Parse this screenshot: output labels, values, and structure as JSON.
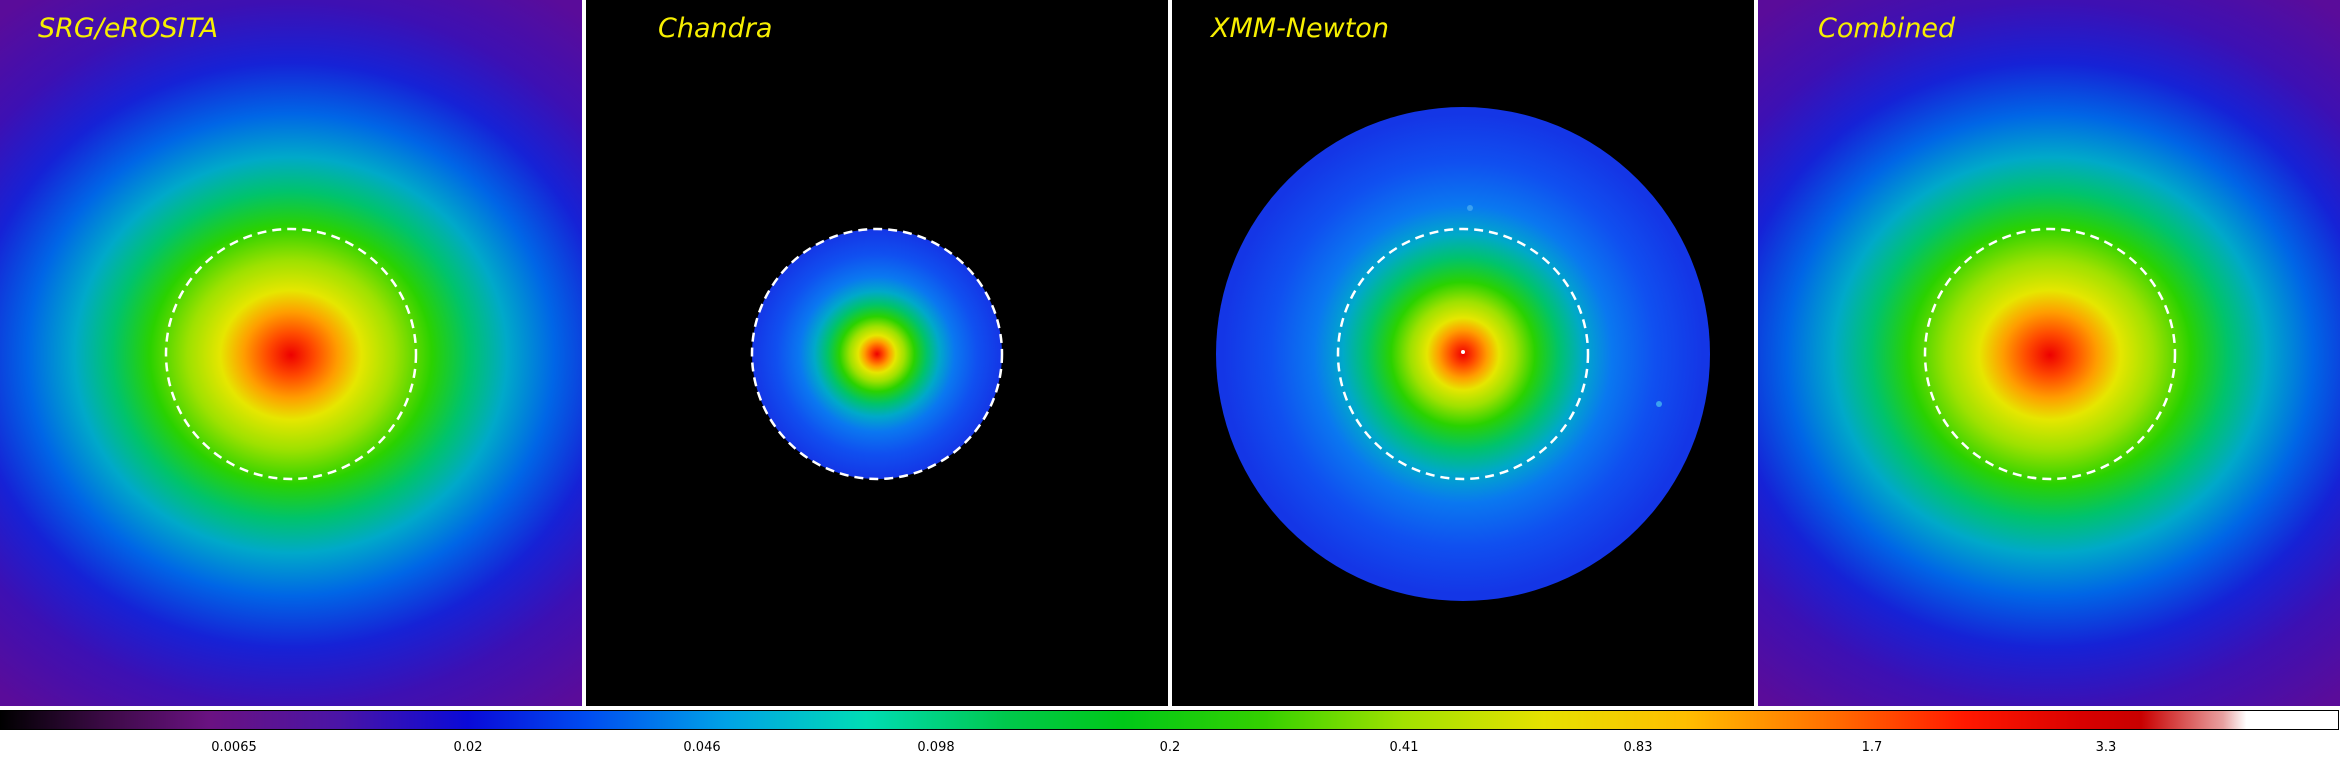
{
  "panels": [
    {
      "title": "SRG/eROSITA",
      "field": "full"
    },
    {
      "title": "Chandra",
      "field": "aperture-only"
    },
    {
      "title": "XMM-Newton",
      "field": "circular"
    },
    {
      "title": "Combined",
      "field": "full"
    }
  ],
  "aperture": {
    "style": "dashed",
    "color": "#ffffff"
  },
  "colorbar": {
    "colormap": "nipy_spectral-like",
    "scale": "log",
    "ticks": [
      "0.0065",
      "0.02",
      "0.046",
      "0.098",
      "0.2",
      "0.41",
      "0.83",
      "1.7",
      "3.3"
    ]
  },
  "colors": {
    "title": "#f7ef00",
    "separator": "#ffffff",
    "background_outside_field": "#000000"
  }
}
